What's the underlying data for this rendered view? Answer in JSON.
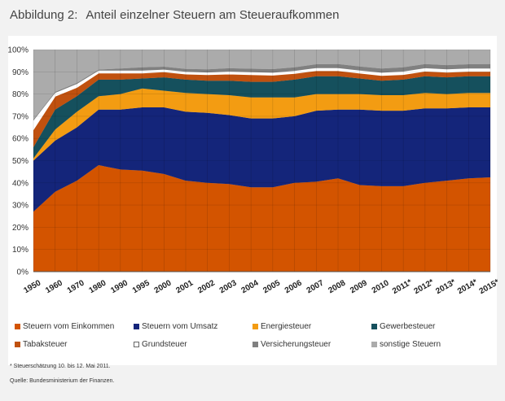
{
  "title": {
    "number": "Abbildung 2:",
    "text": "Anteil einzelner Steuern am Steueraufkommen"
  },
  "footnotes": {
    "estimate": "* Steuerschätzung 10. bis 12. Mai 2011.",
    "source": "Quelle: Bundesministerium der Finanzen."
  },
  "chart_data": {
    "type": "area",
    "stacked": true,
    "x": [
      "1950",
      "1960",
      "1970",
      "1980",
      "1990",
      "1995",
      "2000",
      "2001",
      "2002",
      "2003",
      "2004",
      "2005",
      "2006",
      "2007",
      "2008",
      "2009",
      "2010",
      "2011*",
      "2012*",
      "2013*",
      "2014*",
      "2015*"
    ],
    "ylim": [
      0,
      100
    ],
    "yticks": [
      "0%",
      "10%",
      "20%",
      "30%",
      "40%",
      "50%",
      "60%",
      "70%",
      "80%",
      "90%",
      "100%"
    ],
    "grid": true,
    "legend_position": "bottom",
    "series": [
      {
        "name": "Steuern vom Einkommen",
        "color": "#d35400",
        "values": [
          27,
          36,
          41,
          48,
          46,
          45.5,
          44,
          41,
          40,
          39.5,
          38,
          38,
          40,
          40.5,
          42,
          39,
          38.5,
          38.5,
          40,
          41,
          42,
          42.5
        ]
      },
      {
        "name": "Steuern vom Umsatz",
        "color": "#14257a",
        "values": [
          23,
          23,
          24,
          25,
          27,
          28.5,
          30,
          31,
          31.5,
          31,
          31,
          31,
          30,
          32,
          31,
          34,
          34,
          34,
          33.5,
          32.5,
          32,
          31.5
        ]
      },
      {
        "name": "Energiesteuer",
        "color": "#f39c12",
        "values": [
          1,
          5,
          7,
          6,
          7,
          8.5,
          7.5,
          8.5,
          8.5,
          9,
          9.5,
          9.5,
          8.5,
          7.5,
          7,
          7,
          7,
          7,
          7,
          6.5,
          6.5,
          6.5
        ]
      },
      {
        "name": "Gewerbesteuer",
        "color": "#15505d",
        "values": [
          5,
          9,
          7,
          7.5,
          6.5,
          4.5,
          6,
          6,
          6,
          6.5,
          7,
          7,
          8,
          8,
          8,
          7,
          6.5,
          7,
          7.5,
          7.5,
          7.5,
          7.5
        ]
      },
      {
        "name": "Tabaksteuer",
        "color": "#c0510f",
        "values": [
          8,
          6,
          4,
          3,
          3,
          2.5,
          2.5,
          2.5,
          2.7,
          3,
          3.2,
          3,
          2.8,
          2.5,
          2.5,
          2.4,
          2.4,
          2.3,
          2.3,
          2.3,
          2.2,
          2.2
        ]
      },
      {
        "name": "Grundsteuer",
        "color": "#ffffff",
        "values": [
          4,
          1.5,
          1.5,
          1,
          1,
          1,
          1,
          1,
          1,
          1.1,
          1.1,
          1.1,
          1.1,
          1.2,
          1.2,
          1.2,
          1.2,
          1.3,
          1.3,
          1.3,
          1.3,
          1.3
        ]
      },
      {
        "name": "Versicherungsteuer",
        "color": "#808080",
        "values": [
          0.5,
          0.5,
          0.5,
          0.5,
          1,
          1.5,
          1.3,
          1.3,
          1.4,
          1.5,
          1.6,
          1.6,
          1.6,
          1.7,
          1.8,
          1.8,
          1.9,
          1.9,
          1.9,
          1.9,
          1.9,
          2.0
        ]
      },
      {
        "name": "sonstige Steuern",
        "color": "#ababab",
        "values": [
          31.5,
          19,
          15,
          9,
          8.5,
          8,
          7.7,
          8.7,
          8.9,
          8.4,
          8.6,
          8.8,
          8,
          6.6,
          6.5,
          7.6,
          8.5,
          8,
          6.5,
          7,
          6.6,
          6.5
        ]
      }
    ]
  }
}
